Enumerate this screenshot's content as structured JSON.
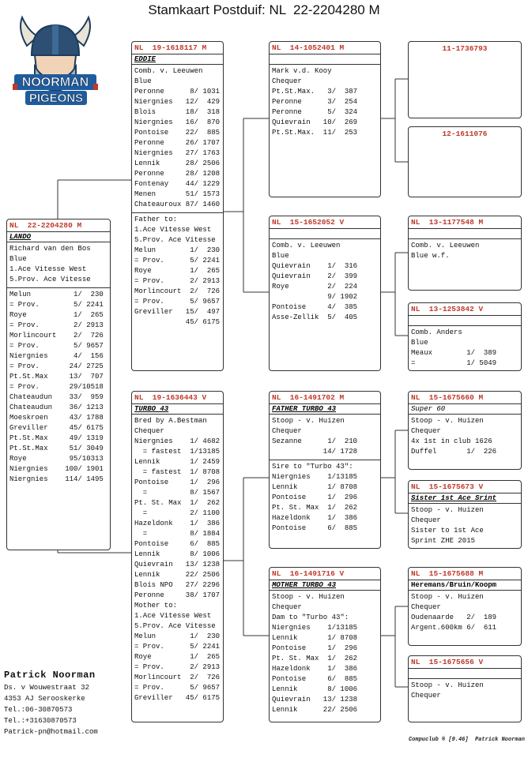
{
  "header": {
    "title": "Stamkaart Postduif: NL  22-2204280 M"
  },
  "logo": {
    "line1": "NOORMAN",
    "line2": "PIGEONS"
  },
  "pedigree": {
    "subject": {
      "ring": "NL  22-2204280 M",
      "name": "LANDO",
      "sections": [
        [
          "Richard van den Bos",
          "Blue",
          "1.Ace Vitesse West",
          "5.Prov. Ace Vitesse"
        ],
        [
          "Melun          1/  230",
          "= Prov.        5/ 2241",
          "Roye           1/  265",
          "= Prov.        2/ 2913",
          "Morlincourt    2/  726",
          "= Prov.        5/ 9657",
          "Niergnies      4/  156",
          "= Prov.       24/ 2725",
          "Pt.St.Max     13/  707",
          "= Prov.       29/10518",
          "Chateaudun    33/  959",
          "Chateaudun    36/ 1213",
          "Moeskroen     43/ 1788",
          "Greviller     45/ 6175",
          "Pt.St.Max     49/ 1319",
          "Pt.St.Max     51/ 3049",
          "Roye          95/10313",
          "Niergnies    100/ 1901",
          "Niergnies    114/ 1495"
        ]
      ]
    },
    "sire": {
      "ring": "NL  19-1618117 M",
      "name": "EDDIE",
      "sections": [
        [
          "Comb. v. Leeuwen",
          "Blue",
          "Peronne      8/ 1031",
          "Niergnies   12/  429",
          "Blois       18/  318",
          "Niergnies   16/  870",
          "Pontoise    22/  885",
          "Peronne     26/ 1707",
          "Niergnies   27/ 1763",
          "Lennik      28/ 2506",
          "Peronne     28/ 1208",
          "Fontenay    44/ 1229",
          "Menen       51/ 1573",
          "Chateauroux 87/ 1460"
        ],
        [
          "Father to:",
          "1.Ace Vitesse West",
          "5.Prov. Ace Vitesse",
          "Melun        1/  230",
          "= Prov.      5/ 2241",
          "Roye         1/  265",
          "= Prov.      2/ 2913",
          "Morlincourt  2/  726",
          "= Prov.      5/ 9657",
          "Greviller   15/  497",
          "            45/ 6175"
        ]
      ]
    },
    "dam": {
      "ring": "NL  19-1636443 V",
      "name": "TURBO 43",
      "sections": [
        [
          "Bred by A.Bestman",
          "Chequer",
          "Niergnies    1/ 4682",
          "  = fastest  1/13185",
          "Lennik       1/ 2459",
          "  = fastest  1/ 8708",
          "Pontoise     1/  296",
          "  =          8/ 1567",
          "Pt. St. Max  1/  262",
          "  =          2/ 1100",
          "Hazeldonk    1/  386",
          "  =          8/ 1884",
          "Pontoise     6/  885",
          "Lennik       8/ 1006",
          "Quievrain   13/ 1238",
          "Lennik      22/ 2506",
          "Blois NPO   27/ 2296",
          "Peronne     38/ 1707",
          "Mother to:",
          "1.Ace Vitesse West",
          "5.Prov. Ace Vitesse",
          "Melun        1/  230",
          "= Prov.      5/ 2241",
          "Roye         1/  265",
          "= Prov.      2/ 2913",
          "Morlincourt  2/  726",
          "= Prov.      5/ 9657",
          "Greviller   45/ 6175"
        ]
      ]
    },
    "gen2": [
      {
        "ring": "NL  14-1052401 M",
        "sections": [
          [
            "Mark v.d. Kooy",
            "Chequer",
            "Pt.St.Max.   3/  387",
            "Peronne      3/  254",
            "Peronne      5/  324",
            "Quievrain   10/  269",
            "Pt.St.Max.  11/  253"
          ]
        ]
      },
      {
        "ring": "NL  15-1652052 V",
        "sections": [
          [
            "Comb. v. Leeuwen",
            "Blue",
            "Quievrain    1/  316",
            "Quievrain    2/  399",
            "Roye         2/  224",
            "             9/ 1902",
            "Pontoise     4/  385",
            "Asse-Zellik  5/  405"
          ]
        ]
      },
      {
        "ring": "NL  16-1491702 M",
        "name": "FATHER TURBO 43",
        "sections": [
          [
            "Stoop - v. Huizen",
            "Chequer",
            "Sezanne      1/  210",
            "            14/ 1728"
          ],
          [
            "Sire to \"Turbo 43\":",
            "Niergnies    1/13185",
            "Lennik       1/ 8708",
            "Pontoise     1/  296",
            "Pt. St. Max  1/  262",
            "Hazeldonk    1/  386",
            "Pontoise     6/  885"
          ]
        ]
      },
      {
        "ring": "NL  16-1491716 V",
        "name": "MOTHER TURBO 43",
        "sections": [
          [
            "Stoop - v. Huizen",
            "Chequer",
            "Dam to \"Turbo 43\":",
            "Niergnies    1/13185",
            "Lennik       1/ 8708",
            "Pontoise     1/  296",
            "Pt. St. Max  1/  262",
            "Hazeldonk    1/  386",
            "Pontoise     6/  885",
            "Lennik       8/ 1006",
            "Quievrain   13/ 1238",
            "Lennik      22/ 2506"
          ]
        ]
      }
    ],
    "gen3": [
      {
        "ring": "11-1736793"
      },
      {
        "ring": "12-1611076"
      },
      {
        "ring": "NL  13-1177548 M",
        "sections": [
          [
            "Comb. v. Leeuwen",
            "Blue w.f."
          ]
        ]
      },
      {
        "ring": "NL  13-1253842 V",
        "sections": [
          [
            "Comb. Anders",
            "Blue",
            "Meaux        1/  389",
            "=            1/ 5049"
          ]
        ]
      },
      {
        "ring": "NL  15-1675660 M",
        "name": "Super 60",
        "sections": [
          [
            "Stoop - v. Huizen",
            "Chequer",
            "4x 1st in club 1626",
            "Duffel       1/  226"
          ]
        ]
      },
      {
        "ring": "NL  15-1675673 V",
        "name": "Sister 1st Ace Srint",
        "sections": [
          [
            "Stoop - v. Huizen",
            "Chequer",
            "Sister to 1st Ace",
            "Sprint ZHE 2015"
          ]
        ]
      },
      {
        "ring": "NL  15-1675688 M",
        "name": "Heremans/Bruin/Koopm",
        "sections": [
          [
            "Stoop - v. Huizen",
            "Chequer",
            "Oudenaarde   2/  189",
            "Argent.600km 6/  611"
          ]
        ]
      },
      {
        "ring": "NL  15-1675656 V",
        "sections": [
          [
            "Stoop - v. Huizen",
            "Chequer"
          ]
        ]
      }
    ]
  },
  "contact": {
    "name": "Patrick Noorman",
    "lines": [
      "Ds. v Wouwestraat 32",
      "4353 AJ  Serooskerke",
      "Tel.:06-30870573",
      "Tel.:+31630870573",
      "Patrick-pn@hotmail.com"
    ]
  },
  "footer": {
    "credit": "Compuclub ® [9.46]  Patrick Noorman"
  }
}
